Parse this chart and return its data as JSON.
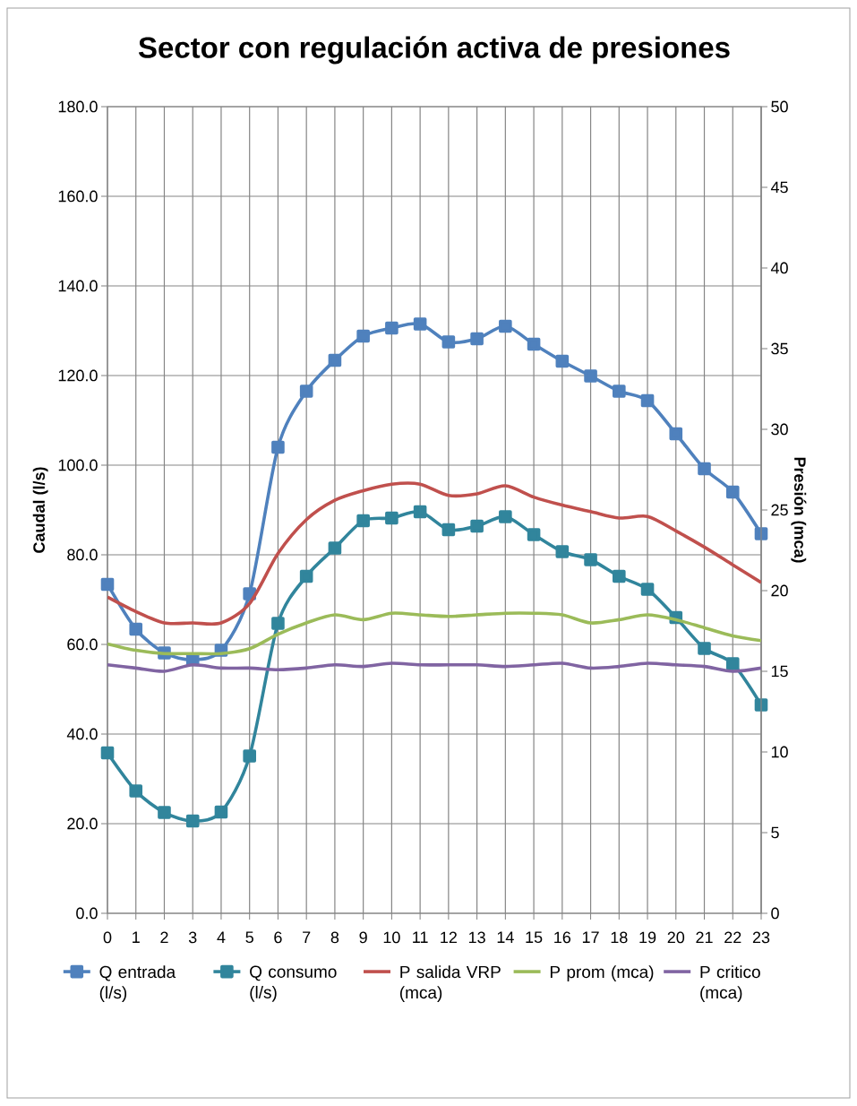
{
  "chart_data": {
    "type": "line",
    "title": "Sector con regulación activa de presiones",
    "ylabel": "Caudal (l/s)",
    "y2label": "Presión (mca)",
    "categories": [
      "0",
      "1",
      "2",
      "3",
      "4",
      "5",
      "6",
      "7",
      "8",
      "9",
      "10",
      "11",
      "12",
      "13",
      "14",
      "15",
      "16",
      "17",
      "18",
      "19",
      "20",
      "21",
      "22",
      "23"
    ],
    "series": [
      {
        "name": "Q entrada (l/s)",
        "color": "#4f81bd",
        "marker": "square",
        "values": [
          73.4,
          63.4,
          58.1,
          56.6,
          58.7,
          71.3,
          104.0,
          116.5,
          123.4,
          128.8,
          130.6,
          131.5,
          127.5,
          128.2,
          131.0,
          127.0,
          123.2,
          119.9,
          116.5,
          114.4,
          107.0,
          99.2,
          94.0,
          84.7
        ]
      },
      {
        "name": "Q consumo (l/s)",
        "color": "#31859c",
        "marker": "square",
        "values": [
          35.8,
          27.3,
          22.5,
          20.6,
          22.6,
          35.1,
          64.7,
          75.2,
          81.5,
          87.6,
          88.2,
          89.6,
          85.6,
          86.4,
          88.5,
          84.5,
          80.7,
          78.9,
          75.2,
          72.3,
          66.0,
          59.1,
          55.7,
          46.5
        ]
      },
      {
        "name": "P salida VRP (mca)",
        "color": "#c0504d",
        "marker": "none",
        "axis": "y2",
        "values": [
          19.6,
          18.7,
          18.0,
          18.0,
          18.0,
          19.2,
          22.3,
          24.4,
          25.6,
          26.2,
          26.6,
          26.6,
          25.9,
          26.0,
          26.5,
          25.8,
          25.3,
          24.9,
          24.5,
          24.6,
          23.7,
          22.7,
          21.6,
          20.5
        ]
      },
      {
        "name": "P prom (mca)",
        "color": "#9bbb59",
        "marker": "none",
        "axis": "y2",
        "values": [
          16.7,
          16.3,
          16.1,
          16.1,
          16.1,
          16.4,
          17.3,
          18.0,
          18.5,
          18.2,
          18.6,
          18.5,
          18.4,
          18.5,
          18.6,
          18.6,
          18.5,
          18.0,
          18.2,
          18.5,
          18.2,
          17.7,
          17.2,
          16.9
        ]
      },
      {
        "name": "P critico (mca)",
        "color": "#8064a2",
        "marker": "none",
        "axis": "y2",
        "values": [
          15.4,
          15.2,
          15.0,
          15.4,
          15.2,
          15.2,
          15.1,
          15.2,
          15.4,
          15.3,
          15.5,
          15.4,
          15.4,
          15.4,
          15.3,
          15.4,
          15.5,
          15.2,
          15.3,
          15.5,
          15.4,
          15.3,
          15.0,
          15.2
        ]
      }
    ],
    "ylim": [
      0,
      180
    ],
    "yticks": [
      {
        "value": 0,
        "label": "0.0"
      },
      {
        "value": 20,
        "label": "20.0"
      },
      {
        "value": 40,
        "label": "40.0"
      },
      {
        "value": 60,
        "label": "60.0"
      },
      {
        "value": 80,
        "label": "80.0"
      },
      {
        "value": 100,
        "label": "100.0"
      },
      {
        "value": 120,
        "label": "120.0"
      },
      {
        "value": 140,
        "label": "140.0"
      },
      {
        "value": 160,
        "label": "160.0"
      },
      {
        "value": 180,
        "label": "180.0"
      }
    ],
    "y2lim": [
      0,
      50
    ],
    "y2ticks": [
      0,
      5,
      10,
      15,
      20,
      25,
      30,
      35,
      40,
      45,
      50
    ],
    "grid": true,
    "legend": "bottom",
    "line_style": "solid"
  }
}
